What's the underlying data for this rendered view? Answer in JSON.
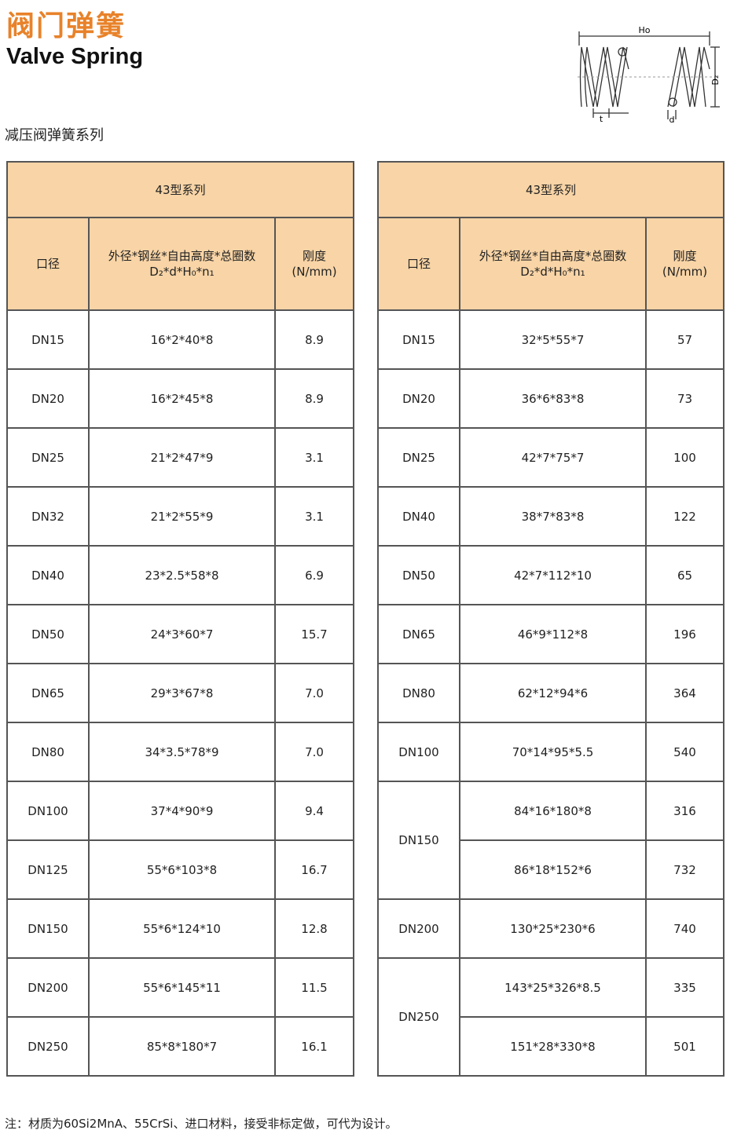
{
  "header": {
    "title_cn": "阀门弹簧",
    "title_en": "Valve Spring",
    "subtitle": "减压阀弹簧系列"
  },
  "diagram": {
    "labels": {
      "free_height": "Ho",
      "diameter": "D₂",
      "pitch": "t",
      "wire": "d"
    }
  },
  "tables": [
    {
      "title": "43型系列",
      "columns": [
        {
          "label": "口径"
        },
        {
          "label": "外径*钢丝*自由高度*总圈数",
          "sublabel": "D₂*d*H₀*n₁"
        },
        {
          "label": "刚度",
          "sublabel": "(N/mm)"
        }
      ],
      "rows": [
        {
          "size": "DN15",
          "items": [
            {
              "spec": "16*2*40*8",
              "stiffness": "8.9"
            }
          ]
        },
        {
          "size": "DN20",
          "items": [
            {
              "spec": "16*2*45*8",
              "stiffness": "8.9"
            }
          ]
        },
        {
          "size": "DN25",
          "items": [
            {
              "spec": "21*2*47*9",
              "stiffness": "3.1"
            }
          ]
        },
        {
          "size": "DN32",
          "items": [
            {
              "spec": "21*2*55*9",
              "stiffness": "3.1"
            }
          ]
        },
        {
          "size": "DN40",
          "items": [
            {
              "spec": "23*2.5*58*8",
              "stiffness": "6.9"
            }
          ]
        },
        {
          "size": "DN50",
          "items": [
            {
              "spec": "24*3*60*7",
              "stiffness": "15.7"
            }
          ]
        },
        {
          "size": "DN65",
          "items": [
            {
              "spec": "29*3*67*8",
              "stiffness": "7.0"
            }
          ]
        },
        {
          "size": "DN80",
          "items": [
            {
              "spec": "34*3.5*78*9",
              "stiffness": "7.0"
            }
          ]
        },
        {
          "size": "DN100",
          "items": [
            {
              "spec": "37*4*90*9",
              "stiffness": "9.4"
            }
          ]
        },
        {
          "size": "DN125",
          "items": [
            {
              "spec": "55*6*103*8",
              "stiffness": "16.7"
            }
          ]
        },
        {
          "size": "DN150",
          "items": [
            {
              "spec": "55*6*124*10",
              "stiffness": "12.8"
            }
          ]
        },
        {
          "size": "DN200",
          "items": [
            {
              "spec": "55*6*145*11",
              "stiffness": "11.5"
            }
          ]
        },
        {
          "size": "DN250",
          "items": [
            {
              "spec": "85*8*180*7",
              "stiffness": "16.1"
            }
          ]
        }
      ]
    },
    {
      "title": "43型系列",
      "columns": [
        {
          "label": "口径"
        },
        {
          "label": "外径*钢丝*自由高度*总圈数",
          "sublabel": "D₂*d*H₀*n₁"
        },
        {
          "label": "刚度",
          "sublabel": "(N/mm)"
        }
      ],
      "rows": [
        {
          "size": "DN15",
          "items": [
            {
              "spec": "32*5*55*7",
              "stiffness": "57"
            }
          ]
        },
        {
          "size": "DN20",
          "items": [
            {
              "spec": "36*6*83*8",
              "stiffness": "73"
            }
          ]
        },
        {
          "size": "DN25",
          "items": [
            {
              "spec": "42*7*75*7",
              "stiffness": "100"
            }
          ]
        },
        {
          "size": "DN40",
          "items": [
            {
              "spec": "38*7*83*8",
              "stiffness": "122"
            }
          ]
        },
        {
          "size": "DN50",
          "items": [
            {
              "spec": "42*7*112*10",
              "stiffness": "65"
            }
          ]
        },
        {
          "size": "DN65",
          "items": [
            {
              "spec": "46*9*112*8",
              "stiffness": "196"
            }
          ]
        },
        {
          "size": "DN80",
          "items": [
            {
              "spec": "62*12*94*6",
              "stiffness": "364"
            }
          ]
        },
        {
          "size": "DN100",
          "items": [
            {
              "spec": "70*14*95*5.5",
              "stiffness": "540"
            }
          ]
        },
        {
          "size": "DN150",
          "items": [
            {
              "spec": "84*16*180*8",
              "stiffness": "316"
            },
            {
              "spec": "86*18*152*6",
              "stiffness": "732"
            }
          ]
        },
        {
          "size": "DN200",
          "items": [
            {
              "spec": "130*25*230*6",
              "stiffness": "740"
            }
          ]
        },
        {
          "size": "DN250",
          "items": [
            {
              "spec": "143*25*326*8.5",
              "stiffness": "335"
            },
            {
              "spec": "151*28*330*8",
              "stiffness": "501"
            }
          ]
        }
      ]
    }
  ],
  "footer": {
    "note": "注：材质为60Si2MnA、55CrSi、进口材料，接受非标定做，可代为设计。"
  }
}
